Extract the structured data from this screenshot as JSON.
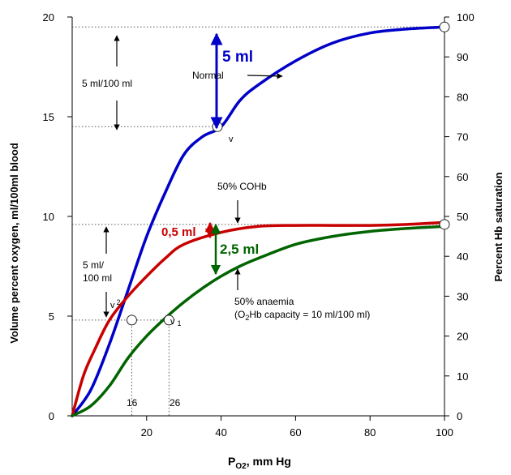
{
  "chart_data": {
    "type": "line",
    "xlabel_main": "P",
    "xlabel_sub": "O2",
    "xlabel_rest": ", mm Hg",
    "ylabel_left": "Volume percent oxygen, ml/100ml blood",
    "ylabel_right": "Percent Hb saturation",
    "xlim": [
      0,
      100
    ],
    "ylim_left": [
      0,
      20
    ],
    "ylim_right": [
      0,
      100
    ],
    "x_ticks": [
      {
        "v": 20,
        "label": "20"
      },
      {
        "v": 40,
        "label": "40"
      },
      {
        "v": 60,
        "label": "60"
      },
      {
        "v": 80,
        "label": "80"
      },
      {
        "v": 100,
        "label": "100"
      }
    ],
    "y_left_ticks": [
      {
        "v": 0,
        "label": "0"
      },
      {
        "v": 5,
        "label": "5"
      },
      {
        "v": 10,
        "label": "10"
      },
      {
        "v": 15,
        "label": "15"
      },
      {
        "v": 20,
        "label": "20"
      }
    ],
    "y_right_ticks": [
      {
        "v": 0,
        "label": "0"
      },
      {
        "v": 10,
        "label": "10"
      },
      {
        "v": 20,
        "label": "20"
      },
      {
        "v": 30,
        "label": "30"
      },
      {
        "v": 40,
        "label": "40"
      },
      {
        "v": 50,
        "label": "50"
      },
      {
        "v": 60,
        "label": "60"
      },
      {
        "v": 70,
        "label": "70"
      },
      {
        "v": 80,
        "label": "80"
      },
      {
        "v": 90,
        "label": "90"
      },
      {
        "v": 100,
        "label": "100"
      }
    ],
    "series": [
      {
        "name": "Normal",
        "color": "#0000c8",
        "x": [
          0,
          5,
          10,
          15,
          20,
          25,
          30,
          35,
          40,
          45,
          50,
          60,
          70,
          80,
          90,
          100
        ],
        "y": [
          0,
          1.3,
          3.6,
          6.3,
          9.0,
          11.2,
          13.1,
          14.0,
          14.5,
          15.8,
          16.6,
          17.8,
          18.7,
          19.2,
          19.4,
          19.5
        ]
      },
      {
        "name": "50% COHb",
        "color": "#c80000",
        "x": [
          0,
          3,
          6,
          10,
          15,
          20,
          25,
          30,
          40,
          50,
          60,
          70,
          80,
          90,
          100
        ],
        "y": [
          0,
          2.0,
          3.3,
          4.8,
          6.0,
          7.0,
          7.9,
          8.6,
          9.2,
          9.5,
          9.55,
          9.55,
          9.55,
          9.6,
          9.7
        ]
      },
      {
        "name": "50% anaemia",
        "color": "#006400",
        "x": [
          0,
          5,
          10,
          15,
          20,
          25,
          30,
          35,
          40,
          45,
          50,
          60,
          70,
          80,
          90,
          100
        ],
        "y": [
          0,
          0.5,
          1.5,
          2.9,
          4.0,
          4.9,
          5.7,
          6.4,
          7.0,
          7.5,
          7.9,
          8.6,
          9.0,
          9.25,
          9.4,
          9.5
        ]
      }
    ],
    "points": [
      {
        "x": 39,
        "y": 14.5
      },
      {
        "x": 100,
        "y": 19.5
      },
      {
        "x": 100,
        "y": 9.6
      },
      {
        "x": 16,
        "y": 4.8
      },
      {
        "x": 26,
        "y": 4.8
      }
    ],
    "annotations": {
      "normal": "Normal",
      "five_ml": "5 ml",
      "five_ml_per_100": "5 ml/100 ml",
      "v": "v",
      "cohb": "50% COHb",
      "half_ml": "0,5 ml",
      "two_half_ml": "2,5 ml",
      "five_ml_line1": "5 ml/",
      "five_ml_line2": "100 ml",
      "v2_v": "v",
      "v2_sub": "2",
      "v1_v": "v",
      "v1_sub": "1",
      "anaemia_line1": "50% anaemia",
      "anaemia_line2_a": "(O",
      "anaemia_line2_sub": "2",
      "anaemia_line2_b": "Hb capacity = 10 ml/100 ml)",
      "x16": "16",
      "x26": "26"
    }
  }
}
